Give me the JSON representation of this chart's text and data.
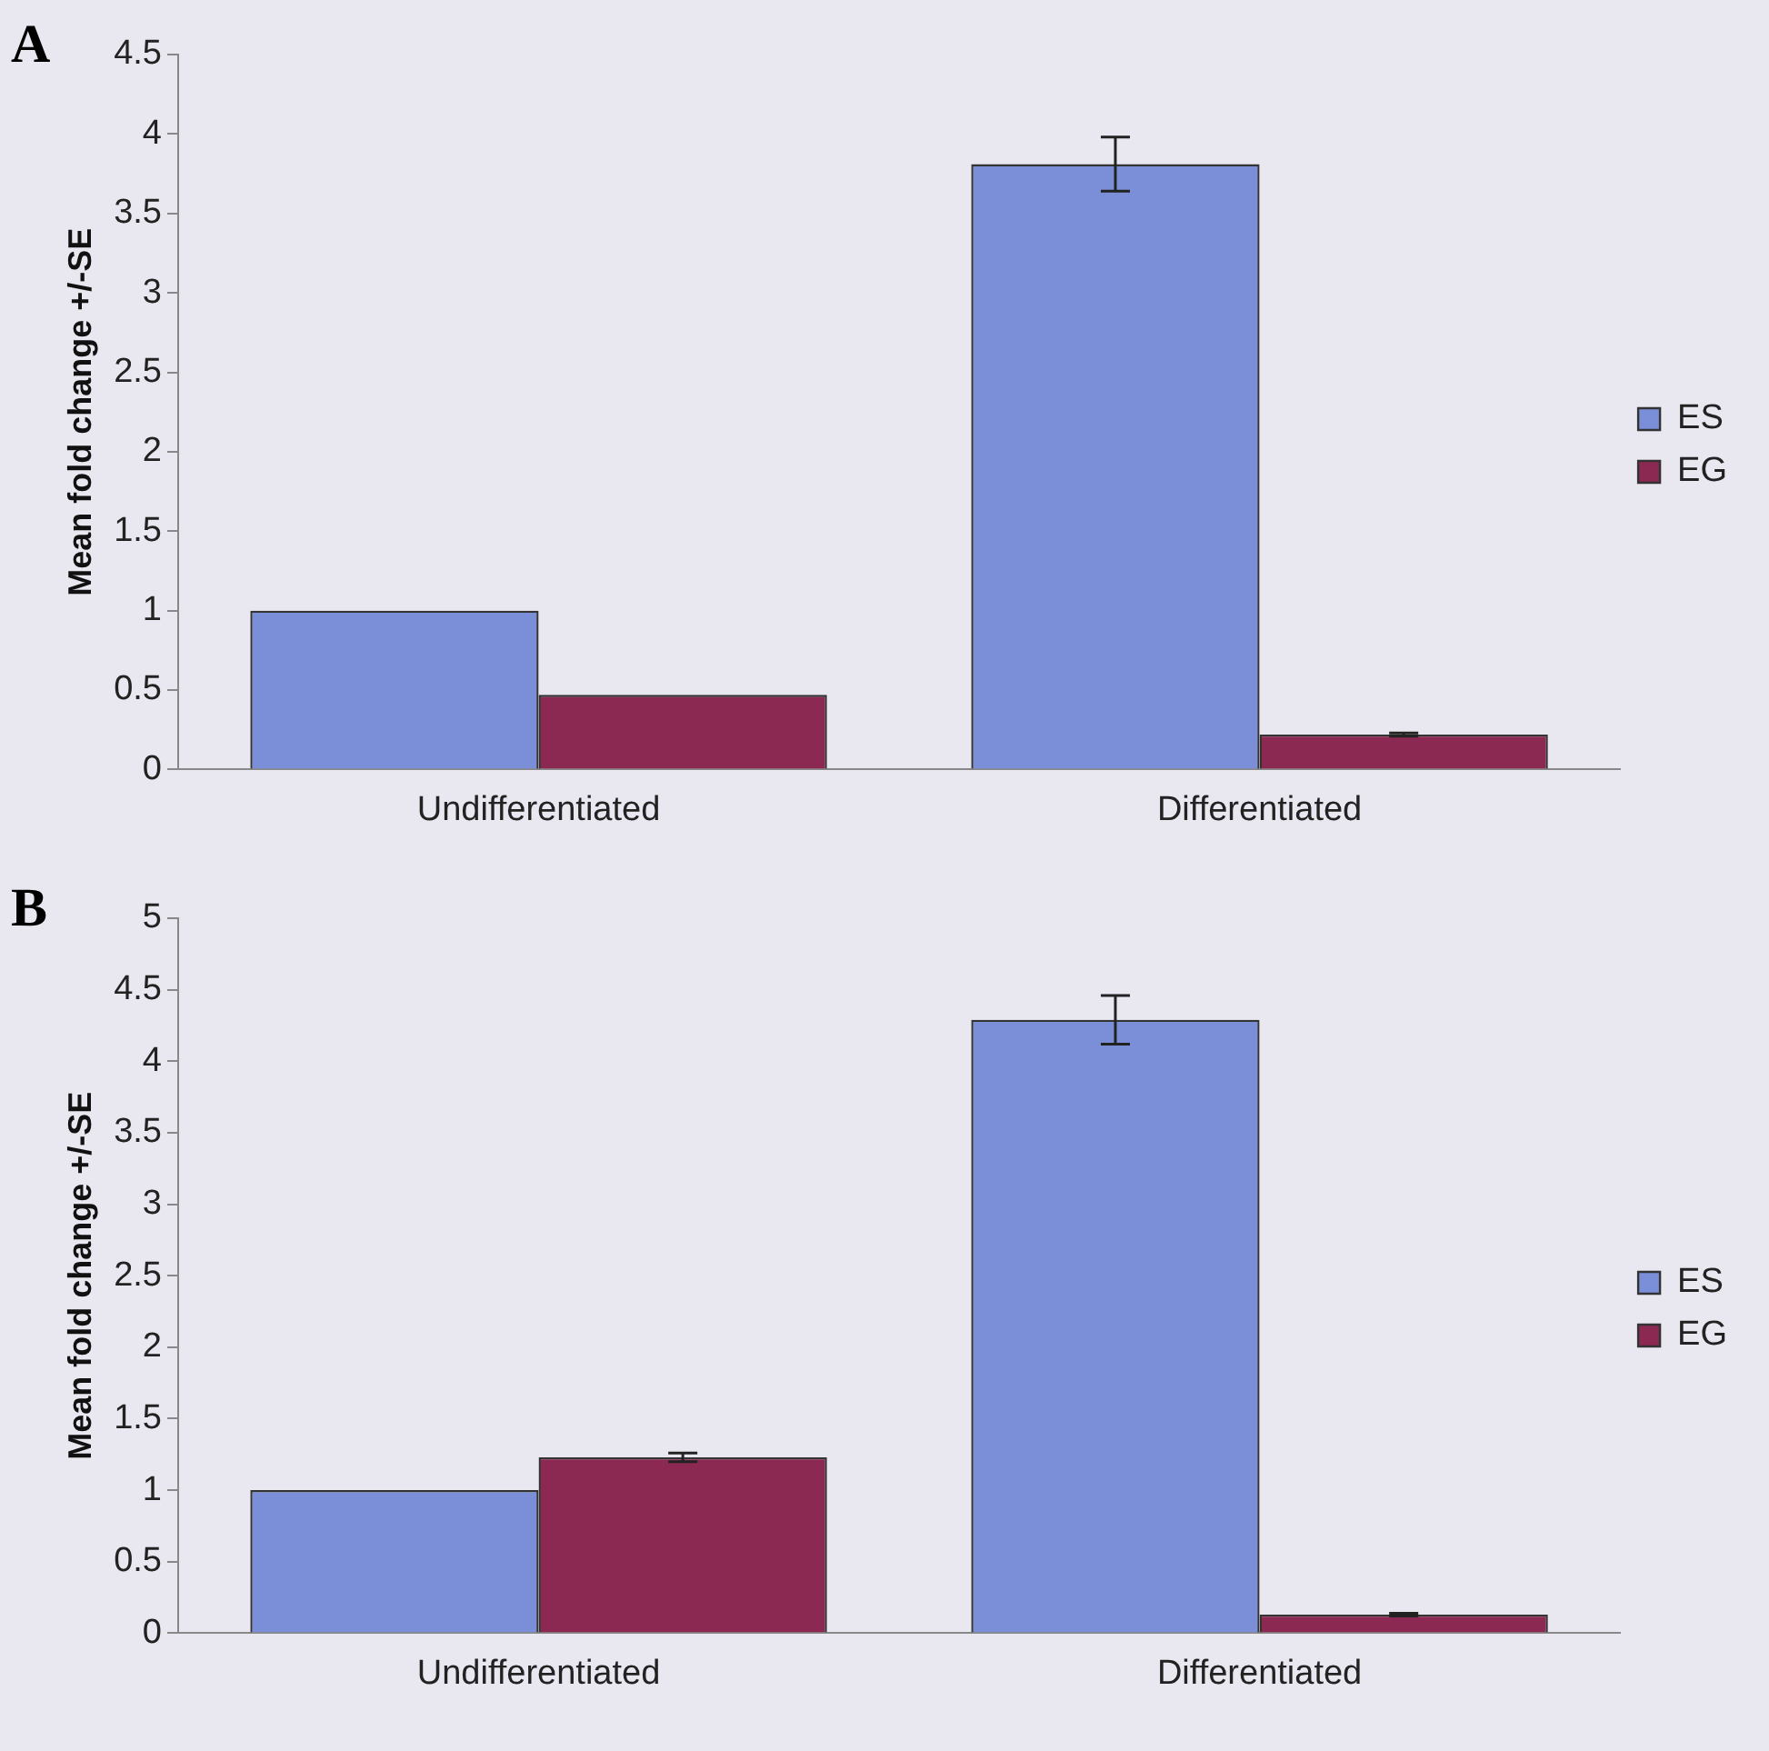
{
  "chart_data": [
    {
      "type": "bar",
      "title": "A",
      "ylabel": "Mean fold change +/-SE",
      "categories": [
        "Undifferentiated",
        "Differentiated"
      ],
      "series": [
        {
          "name": "ES",
          "color": "#7b8fd8",
          "values": [
            1.0,
            3.81
          ],
          "errors": [
            null,
            0.17
          ]
        },
        {
          "name": "EG",
          "color": "#8c2952",
          "values": [
            0.47,
            0.22
          ],
          "errors": [
            null,
            0.01
          ]
        }
      ],
      "ylim": [
        0,
        4.5
      ],
      "yticks": [
        0,
        0.5,
        1,
        1.5,
        2,
        2.5,
        3,
        3.5,
        4,
        4.5
      ],
      "grid": false,
      "legend": "right"
    },
    {
      "type": "bar",
      "title": "B",
      "ylabel": "Mean fold change +/-SE",
      "categories": [
        "Undifferentiated",
        "Differentiated"
      ],
      "series": [
        {
          "name": "ES",
          "color": "#7b8fd8",
          "values": [
            1.0,
            4.29
          ],
          "errors": [
            null,
            0.17
          ]
        },
        {
          "name": "EG",
          "color": "#8c2952",
          "values": [
            1.23,
            0.13
          ],
          "errors": [
            0.03,
            0.01
          ]
        }
      ],
      "ylim": [
        0,
        5
      ],
      "yticks": [
        0,
        0.5,
        1,
        1.5,
        2,
        2.5,
        3,
        3.5,
        4,
        4.5,
        5
      ],
      "grid": false,
      "legend": "right"
    }
  ]
}
